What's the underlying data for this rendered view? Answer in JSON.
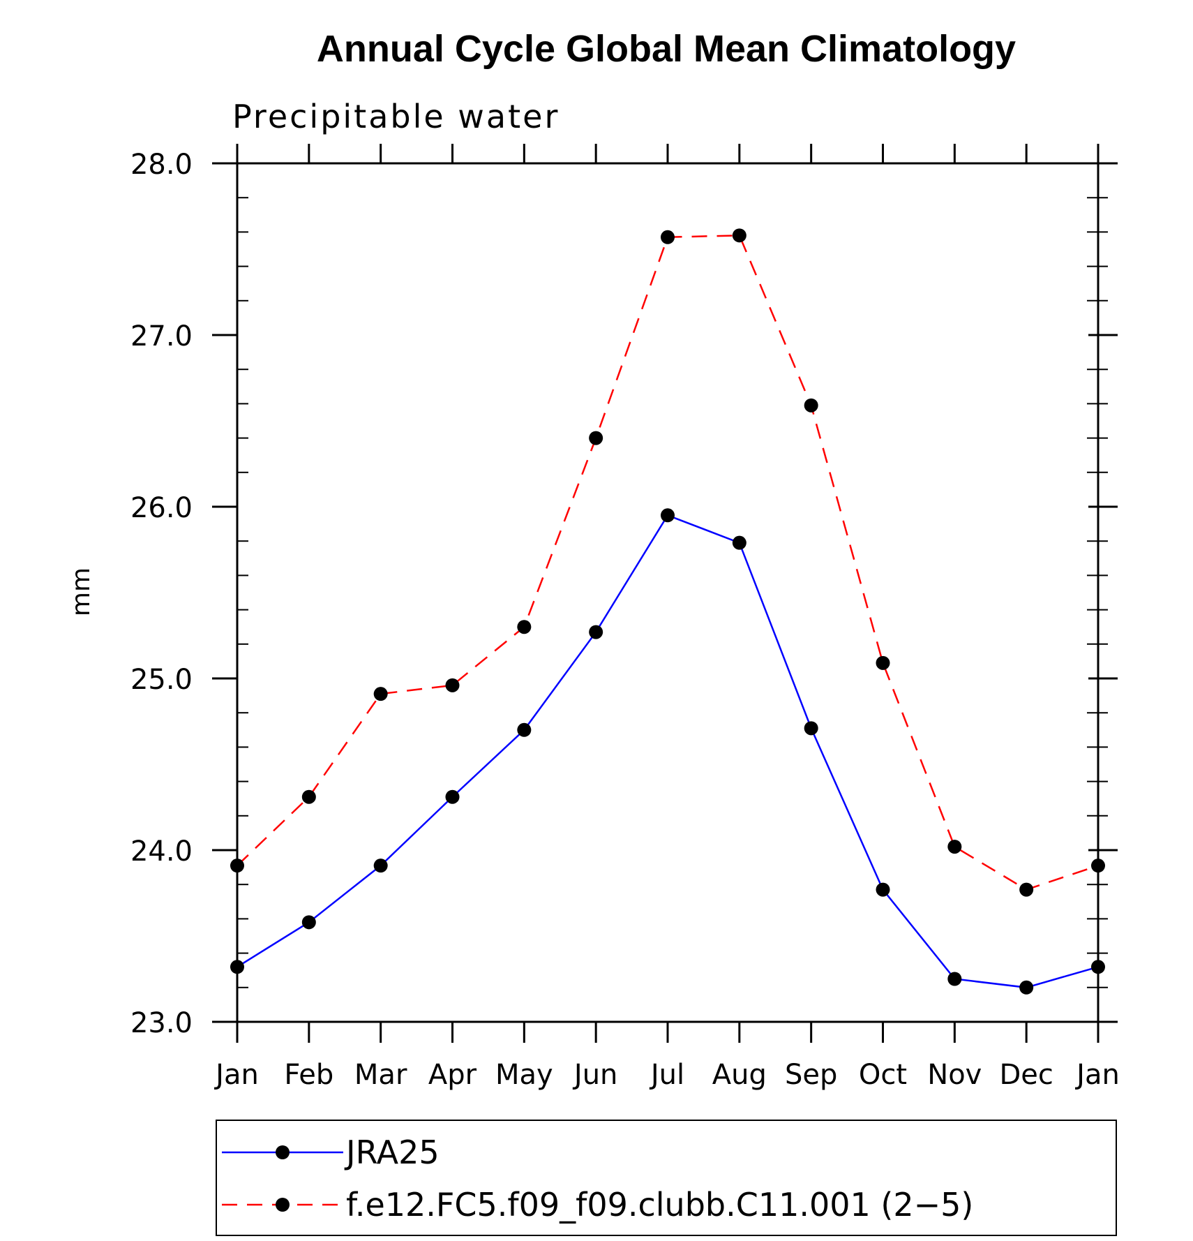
{
  "chart_data": {
    "type": "line",
    "title": "Annual Cycle Global Mean Climatology",
    "subtitle": "Precipitable water",
    "ylabel": "mm",
    "xlabel": "",
    "categories": [
      "Jan",
      "Feb",
      "Mar",
      "Apr",
      "May",
      "Jun",
      "Jul",
      "Aug",
      "Sep",
      "Oct",
      "Nov",
      "Dec",
      "Jan"
    ],
    "ylim": [
      23.0,
      28.0
    ],
    "yticks": [
      "23.0",
      "24.0",
      "25.0",
      "26.0",
      "27.0",
      "28.0"
    ],
    "y_minor_step": 0.2,
    "grid": false,
    "legend_position": "bottom",
    "series": [
      {
        "name": "JRA25",
        "color": "#0000ff",
        "dash": "solid",
        "marker": "filled-circle",
        "values": [
          23.32,
          23.58,
          23.91,
          24.31,
          24.7,
          25.27,
          25.95,
          25.79,
          24.71,
          23.77,
          23.25,
          23.2,
          23.32
        ]
      },
      {
        "name": "f.e12.FC5.f09_f09.clubb.C11.001 (2−5)",
        "color": "#ff0000",
        "dash": "dashed",
        "marker": "filled-circle",
        "values": [
          23.91,
          24.31,
          24.91,
          24.96,
          25.3,
          26.4,
          27.57,
          27.58,
          26.59,
          25.09,
          24.02,
          23.77,
          23.91
        ]
      }
    ]
  }
}
